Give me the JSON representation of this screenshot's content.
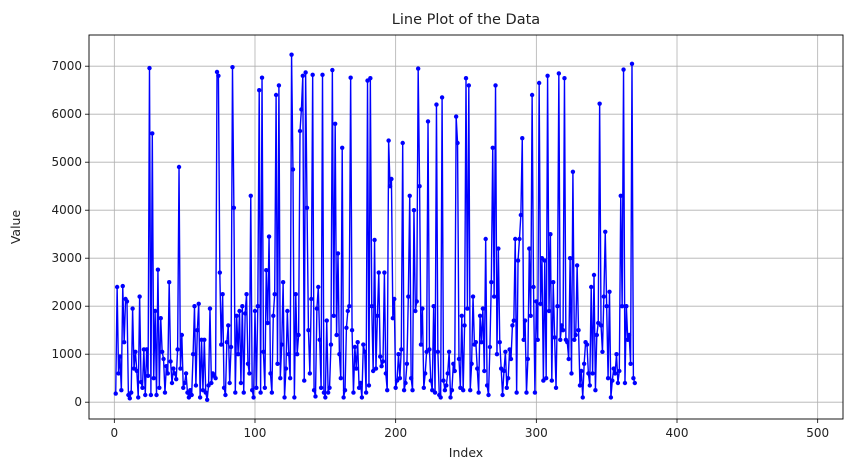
{
  "chart_data": {
    "type": "line",
    "title": "Line Plot of the Data",
    "xlabel": "Index",
    "ylabel": "Value",
    "xlim": [
      -18,
      518
    ],
    "ylim": [
      -350,
      7650
    ],
    "xticks": [
      0,
      100,
      200,
      300,
      400,
      500
    ],
    "yticks": [
      0,
      1000,
      2000,
      3000,
      4000,
      5000,
      6000,
      7000
    ],
    "xtick_labels": [
      "0",
      "100",
      "200",
      "300",
      "400",
      "500"
    ],
    "ytick_labels": [
      "0",
      "1000",
      "2000",
      "3000",
      "4000",
      "5000",
      "6000",
      "7000"
    ],
    "grid": true,
    "series": [
      {
        "color": "#0000ff",
        "marker": "circle",
        "x_start": 1,
        "values": [
          180,
          2400,
          600,
          950,
          250,
          2420,
          1250,
          2150,
          2100,
          150,
          80,
          200,
          1950,
          700,
          1050,
          650,
          100,
          2200,
          420,
          300,
          1100,
          150,
          1100,
          550,
          6960,
          150,
          5600,
          500,
          1900,
          150,
          2760,
          300,
          1750,
          1050,
          900,
          200,
          750,
          600,
          2500,
          850,
          400,
          700,
          600,
          480,
          1100,
          4900,
          700,
          1400,
          300,
          400,
          600,
          200,
          100,
          250,
          150,
          1000,
          2000,
          350,
          1500,
          2050,
          100,
          1300,
          250,
          1300,
          200,
          50,
          350,
          1950,
          400,
          600,
          550,
          500,
          6880,
          6800,
          2700,
          1200,
          2250,
          300,
          150,
          1250,
          1600,
          400,
          1150,
          6980,
          4050,
          200,
          1800,
          1000,
          1900,
          400,
          2000,
          200,
          1850,
          2250,
          800,
          600,
          4300,
          250,
          100,
          1900,
          300,
          2000,
          6500,
          200,
          6760,
          1050,
          300,
          2750,
          1650,
          3450,
          600,
          200,
          1800,
          2250,
          6400,
          800,
          6600,
          500,
          1200,
          2500,
          100,
          700,
          1900,
          1000,
          500,
          7240,
          4850,
          100,
          2250,
          1000,
          1400,
          5650,
          6100,
          6800,
          450,
          6870,
          4050,
          1500,
          600,
          2150,
          6820,
          250,
          120,
          1950,
          2400,
          1300,
          300,
          6820,
          200,
          100,
          1700,
          200,
          300,
          1200,
          6920,
          1800,
          5800,
          1400,
          3100,
          1000,
          500,
          5300,
          100,
          250,
          1550,
          1900,
          2000,
          6760,
          1500,
          200,
          1150,
          700,
          1250,
          300,
          400,
          100,
          1200,
          1050,
          200,
          6700,
          350,
          6750,
          2000,
          650,
          3380,
          700,
          1800,
          2700,
          950,
          750,
          850,
          2700,
          600,
          250,
          5450,
          4500,
          4650,
          1750,
          2150,
          300,
          450,
          1000,
          500,
          1100,
          5400,
          250,
          400,
          800,
          2200,
          4300,
          500,
          250,
          4000,
          1900,
          2100,
          6950,
          4500,
          1200,
          1950,
          300,
          600,
          1050,
          5850,
          1100,
          450,
          250,
          2000,
          200,
          6200,
          1050,
          150,
          100,
          6350,
          450,
          250,
          350,
          600,
          1050,
          100,
          250,
          800,
          650,
          5950,
          5400,
          900,
          300,
          1800,
          250,
          1600,
          6750,
          1950,
          6600,
          250,
          800,
          2200,
          1200,
          1250,
          700,
          200,
          1800,
          1250,
          1950,
          650,
          3400,
          350,
          150,
          1150,
          2500,
          5300,
          2200,
          6600,
          1000,
          3200,
          1250,
          700,
          150,
          650,
          1050,
          300,
          500,
          1100,
          900,
          1600,
          1700,
          3400,
          200,
          2950,
          3400,
          3900,
          5500,
          1300,
          1700,
          200,
          900,
          3200,
          1800,
          6400,
          2400,
          200,
          2100,
          1300,
          6650,
          2050,
          3000,
          450,
          2950,
          500,
          6800,
          1900,
          3500,
          450,
          2500,
          1350,
          300,
          2000,
          6850,
          1300,
          1600,
          1500,
          6750,
          1300,
          1250,
          900,
          3000,
          600,
          4800,
          1300,
          1400,
          2850,
          1500,
          350,
          650,
          100,
          800,
          1250,
          1200,
          600,
          350,
          2400,
          600,
          2650,
          250,
          1400,
          1650,
          6220,
          1600,
          1050,
          2200,
          3550,
          2000,
          500,
          2300,
          100,
          450,
          700,
          600,
          1000,
          400,
          650,
          4300,
          2000,
          6930,
          400,
          2000,
          1300,
          1400,
          800,
          7050,
          500,
          400
        ]
      }
    ]
  }
}
